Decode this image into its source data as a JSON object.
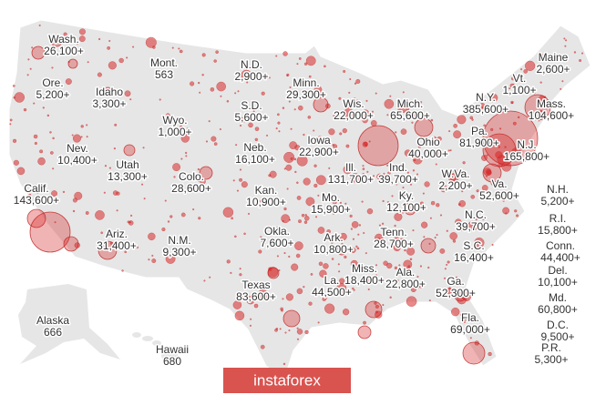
{
  "map": {
    "states": [
      {
        "name": "Wash.",
        "count": "26,100+"
      },
      {
        "name": "Ore.",
        "count": "5,200+"
      },
      {
        "name": "Idaho",
        "count": "3,300+"
      },
      {
        "name": "Mont.",
        "count": "563"
      },
      {
        "name": "N.D.",
        "count": "2,900+"
      },
      {
        "name": "Minn.",
        "count": "29,300+"
      },
      {
        "name": "Wis.",
        "count": "22,000+"
      },
      {
        "name": "Mich.",
        "count": "65,600+"
      },
      {
        "name": "N.Y.",
        "count": "385,600+"
      },
      {
        "name": "Vt.",
        "count": "1,100+"
      },
      {
        "name": "Maine",
        "count": "2,600+"
      },
      {
        "name": "Mass.",
        "count": "104,600+"
      },
      {
        "name": "S.D.",
        "count": "5,600+"
      },
      {
        "name": "Wyo.",
        "count": "1,000+"
      },
      {
        "name": "Nev.",
        "count": "10,400+"
      },
      {
        "name": "Utah",
        "count": "13,300+"
      },
      {
        "name": "Neb.",
        "count": "16,100+"
      },
      {
        "name": "Iowa",
        "count": "22,900+"
      },
      {
        "name": "Ill.",
        "count": "131,700+"
      },
      {
        "name": "Ind.",
        "count": "39,700+"
      },
      {
        "name": "Ohio",
        "count": "40,000+"
      },
      {
        "name": "Pa.",
        "count": "81,900+"
      },
      {
        "name": "N.J.",
        "count": "165,800+"
      },
      {
        "name": "W.Va.",
        "count": "2,200+"
      },
      {
        "name": "Va.",
        "count": "52,600+"
      },
      {
        "name": "Calif.",
        "count": "143,600+"
      },
      {
        "name": "Colo.",
        "count": "28,600+"
      },
      {
        "name": "Kan.",
        "count": "10,900+"
      },
      {
        "name": "Mo.",
        "count": "15,900+"
      },
      {
        "name": "Ky.",
        "count": "12,100+"
      },
      {
        "name": "N.C.",
        "count": "39,700+"
      },
      {
        "name": "Ariz.",
        "count": "31,400+"
      },
      {
        "name": "N.M.",
        "count": "9,300+"
      },
      {
        "name": "Okla.",
        "count": "7,600+"
      },
      {
        "name": "Ark.",
        "count": "10,800+"
      },
      {
        "name": "Tenn.",
        "count": "28,700+"
      },
      {
        "name": "S.C.",
        "count": "16,400+"
      },
      {
        "name": "Miss.",
        "count": "18,400+"
      },
      {
        "name": "Ala.",
        "count": "22,800+"
      },
      {
        "name": "Ga.",
        "count": "52,300+"
      },
      {
        "name": "La.",
        "count": "44,500+"
      },
      {
        "name": "Texas",
        "count": "83,600+"
      },
      {
        "name": "Fla.",
        "count": "69,000+"
      },
      {
        "name": "Alaska",
        "count": "666"
      },
      {
        "name": "Hawaii",
        "count": "680"
      },
      {
        "name": "N.H.",
        "count": "5,200+"
      },
      {
        "name": "R.I.",
        "count": "15,800+"
      },
      {
        "name": "Conn.",
        "count": "44,400+"
      },
      {
        "name": "Del.",
        "count": "10,100+"
      },
      {
        "name": "Md.",
        "count": "60,800+"
      },
      {
        "name": "D.C.",
        "count": "9,500+"
      },
      {
        "name": "P.R.",
        "count": "5,300+"
      }
    ],
    "watermark": "instaforex"
  }
}
